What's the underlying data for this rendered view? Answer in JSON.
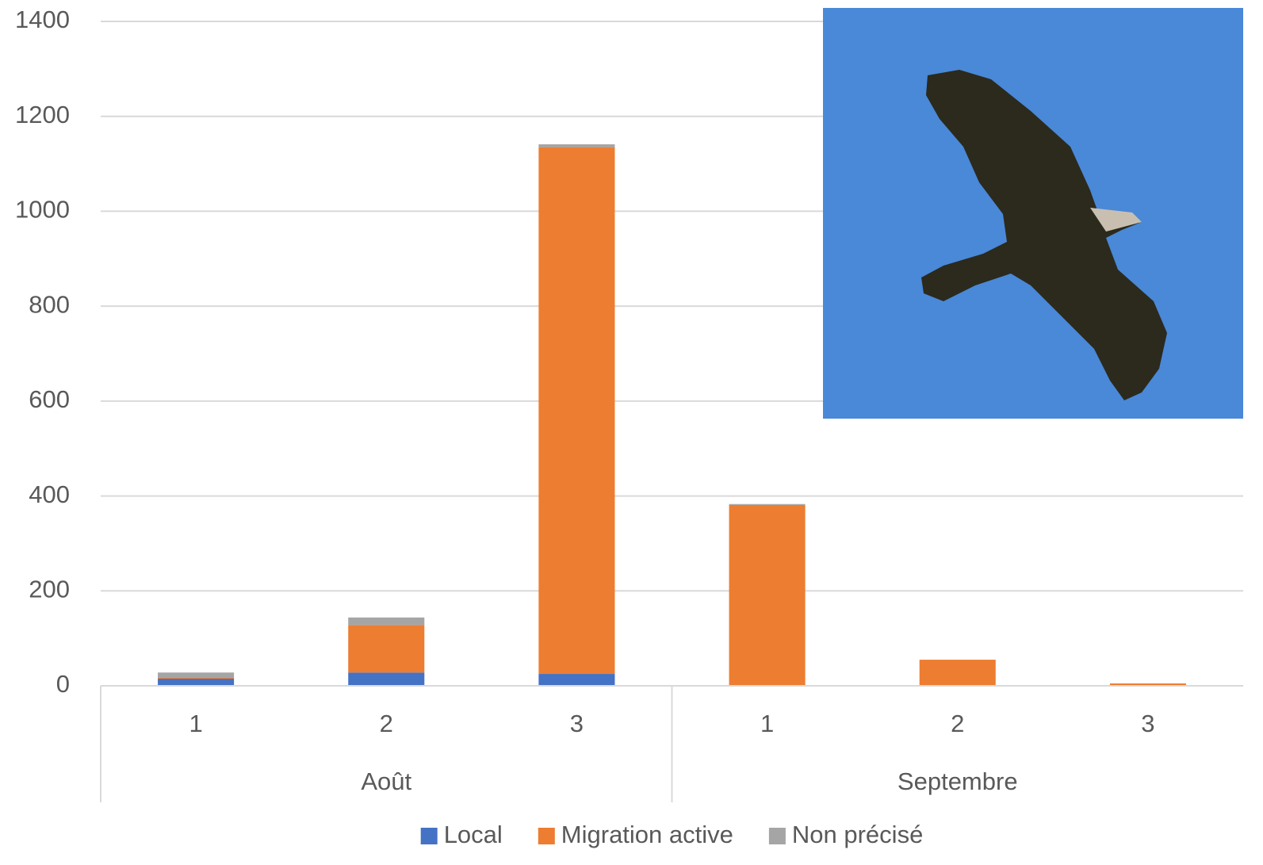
{
  "chart_data": {
    "type": "stacked_bar",
    "categories": [
      "1",
      "2",
      "3",
      "1",
      "2",
      "3"
    ],
    "groups": [
      "Août",
      "Septembre"
    ],
    "series": [
      {
        "name": "Local",
        "color": "#4472c4",
        "values": [
          15,
          28,
          25,
          0,
          0,
          0
        ]
      },
      {
        "name": "Migration active",
        "color": "#ed7d31",
        "values": [
          3,
          100,
          1110,
          381,
          55,
          5
        ]
      },
      {
        "name": "Non précisé",
        "color": "#a5a5a5",
        "values": [
          10,
          16,
          6,
          2,
          0,
          0
        ]
      }
    ],
    "ylim": [
      0,
      1400
    ],
    "yticks": [
      0,
      200,
      400,
      600,
      800,
      1000,
      1200,
      1400
    ],
    "grid": true,
    "legend": "bottom"
  }
}
